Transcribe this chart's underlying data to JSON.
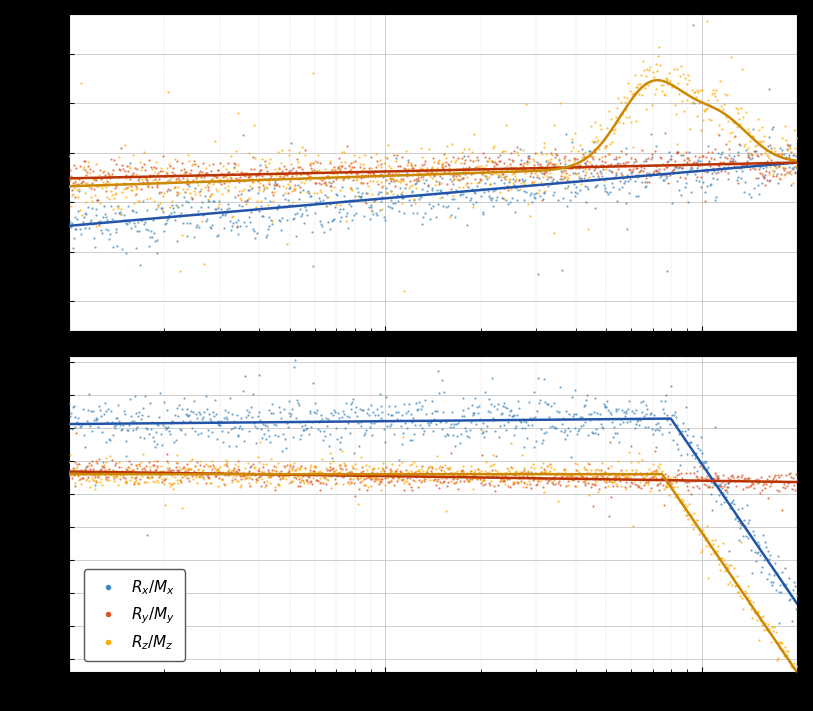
{
  "color_blue": "#4488BB",
  "color_orange": "#DD5522",
  "color_yellow": "#FFAA00",
  "color_line_blue": "#2255AA",
  "color_line_orange": "#BB3300",
  "color_line_yellow": "#CC8800",
  "background_color": "#ffffff",
  "grid_color": "#bbbbbb",
  "freq_min": 1,
  "freq_max": 200,
  "legend_labels": [
    "$R_x/M_x$",
    "$R_y/M_y$",
    "$R_z/M_z$"
  ],
  "dot_size": 2.5,
  "dot_alpha": 0.75,
  "line_width": 1.8
}
